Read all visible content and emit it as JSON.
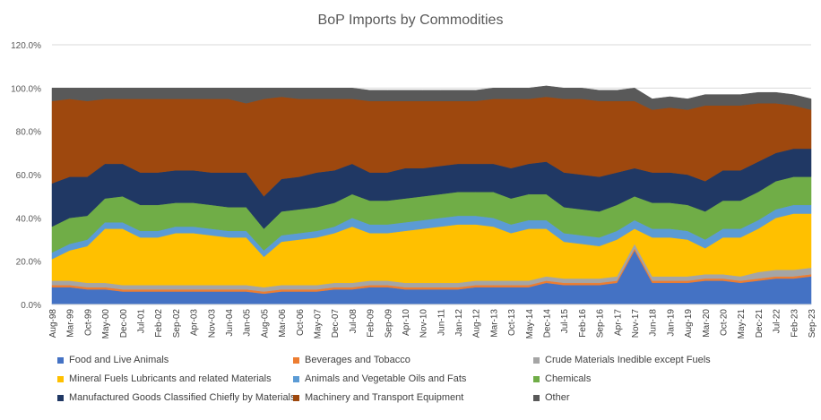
{
  "chart_data": {
    "type": "area",
    "stacked": true,
    "title": "BoP Imports by Commodities",
    "xlabel": "",
    "ylabel": "",
    "ylim": [
      0,
      120
    ],
    "y_ticks": [
      "0.0%",
      "20.0%",
      "40.0%",
      "60.0%",
      "80.0%",
      "100.0%",
      "120.0%"
    ],
    "grid": true,
    "legend_position": "bottom",
    "x_tick_labels": [
      "Aug-98",
      "Mar-99",
      "Oct-99",
      "May-00",
      "Dec-00",
      "Jul-01",
      "Feb-02",
      "Sep-02",
      "Apr-03",
      "Nov-03",
      "Jun-04",
      "Jan-05",
      "Aug-05",
      "Mar-06",
      "Oct-06",
      "May-07",
      "Dec-07",
      "Jul-08",
      "Feb-09",
      "Sep-09",
      "Apr-10",
      "Nov-10",
      "Jun-11",
      "Jan-12",
      "Aug-12",
      "Mar-13",
      "Oct-13",
      "May-14",
      "Dec-14",
      "Jul-15",
      "Feb-16",
      "Sep-16",
      "Apr-17",
      "Nov-17",
      "Jun-18",
      "Jan-19",
      "Aug-19",
      "Mar-20",
      "Oct-20",
      "May-21",
      "Dec-21",
      "Jul-22",
      "Feb-23",
      "Sep-23"
    ],
    "series": [
      {
        "name": "Food  and Live Animals",
        "color": "#4472C4",
        "values": [
          8,
          8,
          7,
          7,
          6,
          6,
          6,
          6,
          6,
          6,
          6,
          6,
          5,
          6,
          6,
          6,
          7,
          7,
          8,
          8,
          7,
          7,
          7,
          7,
          8,
          8,
          8,
          8,
          10,
          9,
          9,
          9,
          10,
          25,
          10,
          10,
          10,
          11,
          11,
          10,
          11,
          12,
          12,
          13
        ]
      },
      {
        "name": "Beverages and Tobacco",
        "color": "#ED7D31",
        "values": [
          1,
          1,
          1,
          1,
          1,
          1,
          1,
          1,
          1,
          1,
          1,
          1,
          1,
          1,
          1,
          1,
          1,
          1,
          1,
          1,
          1,
          1,
          1,
          1,
          1,
          1,
          1,
          1,
          1,
          1,
          1,
          1,
          1,
          1,
          1,
          1,
          1,
          1,
          1,
          1,
          1,
          1,
          1,
          1
        ]
      },
      {
        "name": "Crude Materials Inedible except Fuels",
        "color": "#A5A5A5",
        "values": [
          2,
          2,
          2,
          2,
          2,
          2,
          2,
          2,
          2,
          2,
          2,
          2,
          2,
          2,
          2,
          2,
          2,
          2,
          2,
          2,
          2,
          2,
          2,
          2,
          2,
          2,
          2,
          2,
          2,
          2,
          2,
          2,
          2,
          2,
          2,
          2,
          2,
          2,
          2,
          2,
          3,
          3,
          3,
          3
        ]
      },
      {
        "name": "Mineral Fuels Lubricants and related Materials",
        "color": "#FFC000",
        "values": [
          10,
          14,
          17,
          25,
          26,
          22,
          22,
          24,
          24,
          23,
          22,
          22,
          14,
          20,
          21,
          22,
          23,
          26,
          22,
          22,
          24,
          25,
          26,
          27,
          26,
          25,
          22,
          24,
          22,
          17,
          16,
          15,
          17,
          7,
          18,
          18,
          17,
          12,
          17,
          18,
          20,
          24,
          26,
          25
        ]
      },
      {
        "name": "Animals and Vegetable Oils and Fats",
        "color": "#5B9BD5",
        "values": [
          3,
          3,
          3,
          3,
          3,
          3,
          3,
          3,
          3,
          3,
          3,
          3,
          3,
          3,
          3,
          3,
          3,
          4,
          4,
          4,
          4,
          4,
          4,
          4,
          4,
          4,
          4,
          4,
          4,
          4,
          4,
          4,
          4,
          4,
          4,
          4,
          4,
          4,
          4,
          4,
          4,
          4,
          4,
          4
        ]
      },
      {
        "name": "Chemicals",
        "color": "#70AD47",
        "values": [
          12,
          12,
          11,
          11,
          12,
          12,
          12,
          11,
          11,
          11,
          11,
          11,
          10,
          11,
          11,
          11,
          11,
          11,
          11,
          11,
          11,
          11,
          11,
          11,
          11,
          12,
          12,
          12,
          12,
          12,
          12,
          12,
          12,
          11,
          12,
          12,
          12,
          13,
          13,
          13,
          13,
          13,
          13,
          13
        ]
      },
      {
        "name": "Manufactured Goods Classified Chiefly by Materials",
        "color": "#203864",
        "values": [
          20,
          19,
          18,
          16,
          15,
          15,
          15,
          15,
          15,
          15,
          16,
          16,
          15,
          15,
          15,
          16,
          15,
          14,
          13,
          13,
          14,
          13,
          13,
          13,
          13,
          13,
          14,
          14,
          15,
          16,
          16,
          16,
          15,
          13,
          14,
          14,
          14,
          14,
          14,
          14,
          14,
          13,
          13,
          13
        ]
      },
      {
        "name": "Machinery and Transport Equipment",
        "color": "#9E480E",
        "values": [
          38,
          36,
          35,
          30,
          30,
          34,
          34,
          33,
          33,
          34,
          34,
          32,
          45,
          38,
          36,
          34,
          33,
          30,
          33,
          33,
          31,
          31,
          30,
          29,
          29,
          30,
          32,
          30,
          30,
          34,
          35,
          35,
          33,
          31,
          29,
          30,
          30,
          35,
          30,
          30,
          27,
          23,
          20,
          18
        ]
      },
      {
        "name": "Other",
        "color": "#595959",
        "values": [
          6,
          5,
          6,
          5,
          5,
          5,
          5,
          5,
          5,
          5,
          5,
          7,
          5,
          4,
          5,
          5,
          5,
          5,
          5,
          5,
          5,
          5,
          5,
          5,
          5,
          5,
          5,
          5,
          5,
          5,
          5,
          5,
          5,
          6,
          5,
          5,
          5,
          5,
          5,
          5,
          5,
          5,
          5,
          5
        ]
      }
    ]
  }
}
